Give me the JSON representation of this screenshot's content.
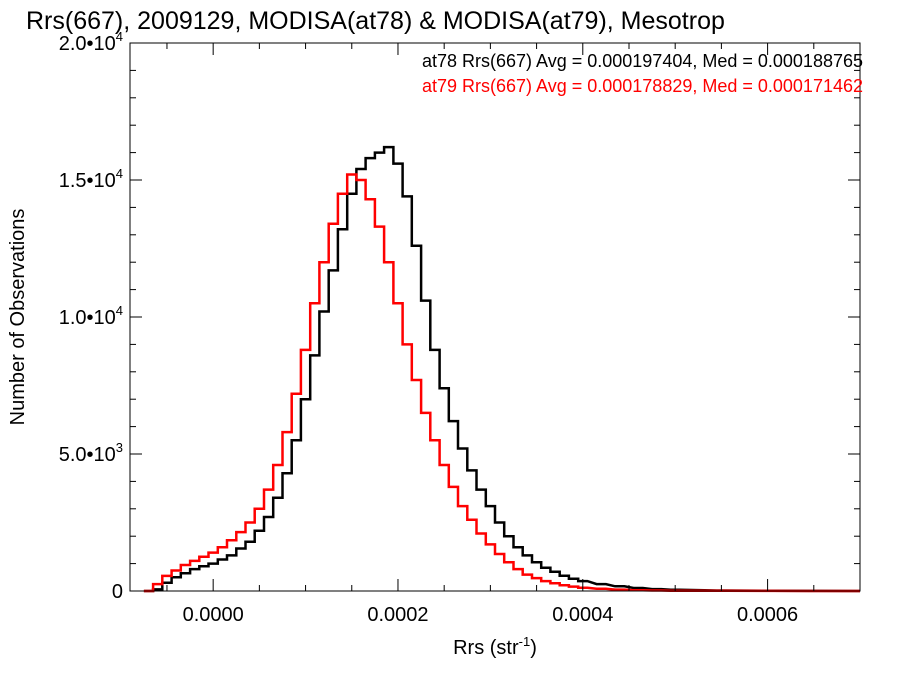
{
  "chart_data": {
    "type": "line",
    "title": "Rrs(667), 2009129, MODISA(at78) & MODISA(at79), Mesotrop",
    "xlabel": "Rrs (str",
    "xlabel_sup": "-1",
    "xlabel_close": ")",
    "ylabel": "Number of Observations",
    "xlim": [
      -9e-05,
      0.0007
    ],
    "ylim": [
      0,
      20000
    ],
    "grid": false,
    "legend_position": "top-right",
    "x_ticks": [
      {
        "value": 0.0,
        "label": "0.0000"
      },
      {
        "value": 0.0002,
        "label": "0.0002"
      },
      {
        "value": 0.0004,
        "label": "0.0004"
      },
      {
        "value": 0.0006,
        "label": "0.0006"
      }
    ],
    "y_ticks": [
      {
        "value": 0,
        "label": "0",
        "sup": ""
      },
      {
        "value": 5000,
        "label": "5.0•10",
        "sup": "3"
      },
      {
        "value": 10000,
        "label": "1.0•10",
        "sup": "4"
      },
      {
        "value": 15000,
        "label": "1.5•10",
        "sup": "4"
      },
      {
        "value": 20000,
        "label": "2.0•10",
        "sup": "4"
      }
    ],
    "legend": [
      {
        "text": "at78 Rrs(667) Avg = 0.000197404, Med = 0.000188765",
        "color": "#000000"
      },
      {
        "text": "at79 Rrs(667) Avg = 0.000178829, Med = 0.000171462",
        "color": "#ff0000"
      }
    ],
    "series": [
      {
        "color": "#000000",
        "x": [
          -7e-05,
          -6e-05,
          -5e-05,
          -4e-05,
          -3e-05,
          -2e-05,
          -1e-05,
          0.0,
          1e-05,
          2e-05,
          3e-05,
          4e-05,
          5e-05,
          6e-05,
          7e-05,
          8e-05,
          9e-05,
          0.0001,
          0.00011,
          0.00012,
          0.00013,
          0.00014,
          0.00015,
          0.00016,
          0.00017,
          0.00018,
          0.00019,
          0.0002,
          0.00021,
          0.00022,
          0.00023,
          0.00024,
          0.00025,
          0.00026,
          0.00027,
          0.00028,
          0.00029,
          0.0003,
          0.00031,
          0.00032,
          0.00033,
          0.00034,
          0.00035,
          0.00036,
          0.00037,
          0.00038,
          0.00039,
          0.0004,
          0.00042,
          0.00044,
          0.00046,
          0.00048,
          0.0005,
          0.00055,
          0.0006,
          0.00065,
          0.0007
        ],
        "y": [
          0,
          60,
          300,
          500,
          650,
          800,
          900,
          1000,
          1150,
          1300,
          1550,
          1800,
          2200,
          2700,
          3400,
          4300,
          5500,
          7000,
          8600,
          10200,
          11700,
          13200,
          14500,
          15400,
          15800,
          16000,
          16200,
          15600,
          14400,
          12600,
          10600,
          8800,
          7400,
          6200,
          5200,
          4400,
          3700,
          3100,
          2500,
          2000,
          1600,
          1300,
          1050,
          850,
          700,
          560,
          450,
          360,
          250,
          170,
          110,
          70,
          45,
          20,
          10,
          5,
          0
        ]
      },
      {
        "color": "#ff0000",
        "x": [
          -7e-05,
          -6e-05,
          -5e-05,
          -4e-05,
          -3e-05,
          -2e-05,
          -1e-05,
          0.0,
          1e-05,
          2e-05,
          3e-05,
          4e-05,
          5e-05,
          6e-05,
          7e-05,
          8e-05,
          9e-05,
          0.0001,
          0.00011,
          0.00012,
          0.00013,
          0.00014,
          0.00015,
          0.00016,
          0.00017,
          0.00018,
          0.00019,
          0.0002,
          0.00021,
          0.00022,
          0.00023,
          0.00024,
          0.00025,
          0.00026,
          0.00027,
          0.00028,
          0.00029,
          0.0003,
          0.00031,
          0.00032,
          0.00033,
          0.00034,
          0.00035,
          0.00036,
          0.00037,
          0.00038,
          0.00039,
          0.0004,
          0.00042,
          0.00044,
          0.00046,
          0.00048,
          0.0005,
          0.00055,
          0.0006,
          0.00065,
          0.0007
        ],
        "y": [
          0,
          250,
          550,
          750,
          950,
          1100,
          1250,
          1400,
          1600,
          1850,
          2150,
          2500,
          3000,
          3700,
          4600,
          5800,
          7200,
          8800,
          10500,
          12000,
          13400,
          14500,
          15200,
          15000,
          14300,
          13300,
          12000,
          10500,
          9000,
          7700,
          6500,
          5500,
          4600,
          3800,
          3100,
          2600,
          2100,
          1700,
          1350,
          1050,
          800,
          600,
          470,
          360,
          280,
          210,
          160,
          120,
          80,
          50,
          30,
          20,
          12,
          6,
          3,
          1,
          0
        ]
      }
    ]
  }
}
